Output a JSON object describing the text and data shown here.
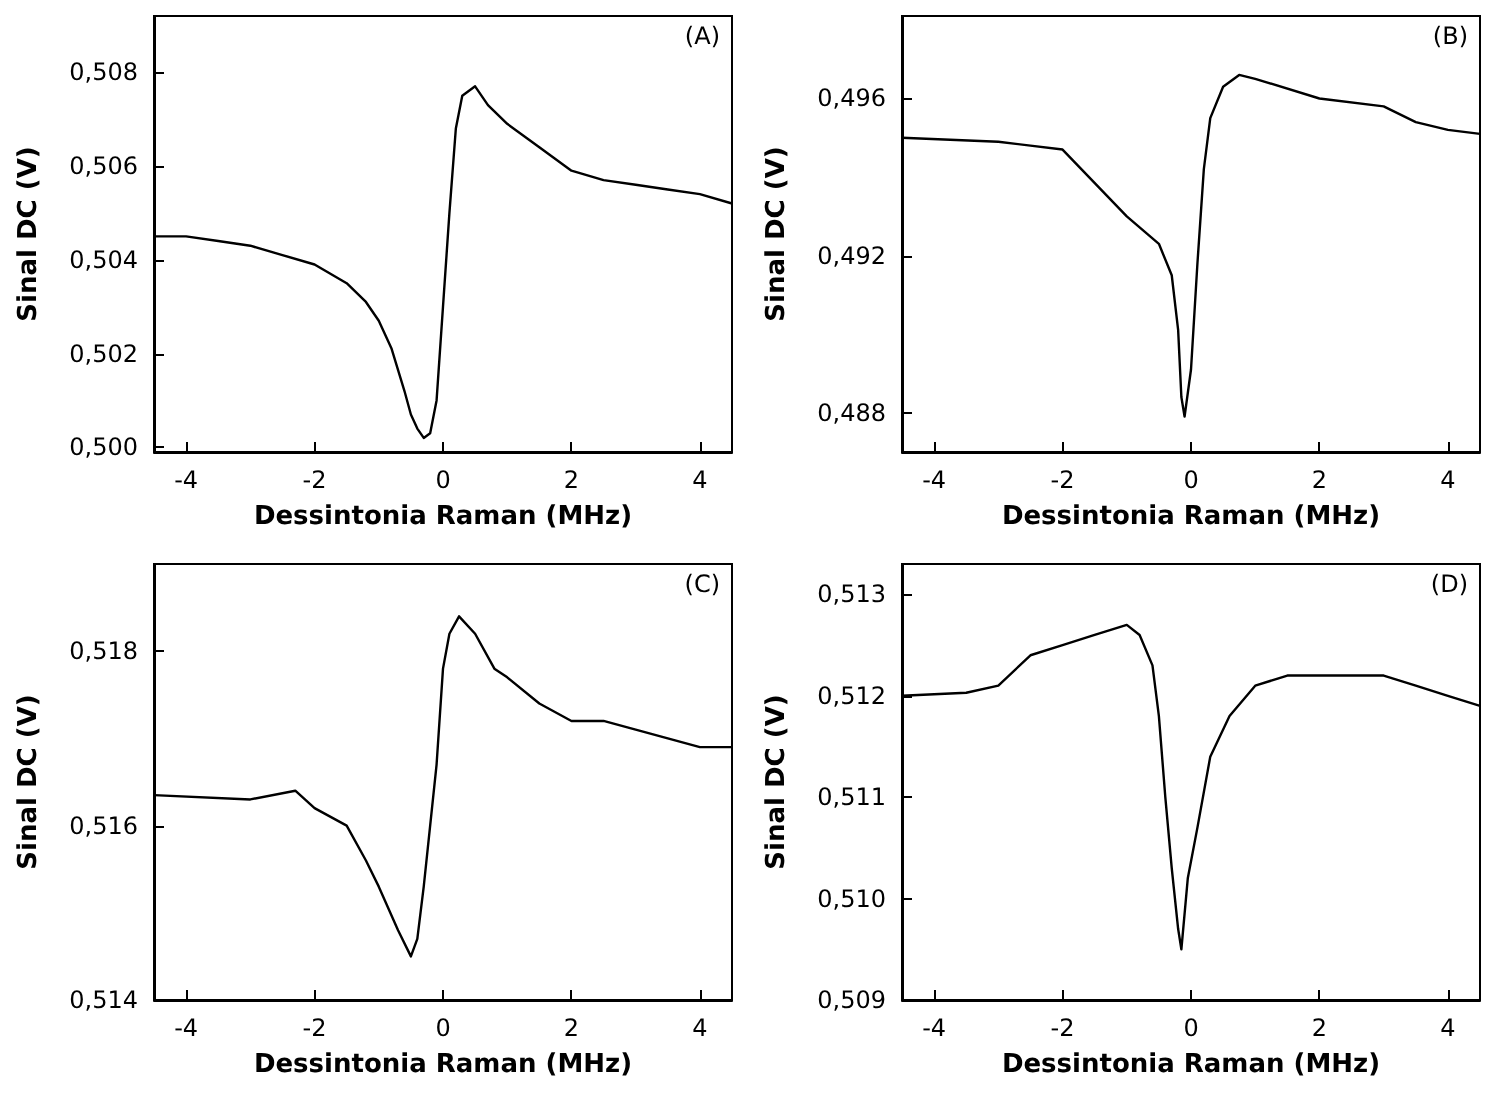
{
  "chart_data": [
    {
      "type": "line",
      "annotations": [
        "(A)"
      ],
      "xlabel": "Dessintonia Raman (MHz)",
      "ylabel": "Sinal DC (V)",
      "xlim": [
        -4.5,
        4.5
      ],
      "xticks": [
        -4,
        -2,
        0,
        2,
        4
      ],
      "ylim": [
        0.4999,
        0.5092
      ],
      "yticks": [
        {
          "value": 0.5,
          "label": "0,500"
        },
        {
          "value": 0.502,
          "label": "0,502"
        },
        {
          "value": 0.504,
          "label": "0,504"
        },
        {
          "value": 0.506,
          "label": "0,506"
        },
        {
          "value": 0.508,
          "label": "0,508"
        }
      ],
      "x": [
        -4.5,
        -4,
        -3.5,
        -3,
        -2.5,
        -2,
        -1.5,
        -1.2,
        -1,
        -0.8,
        -0.6,
        -0.5,
        -0.4,
        -0.3,
        -0.2,
        -0.1,
        0,
        0.1,
        0.2,
        0.3,
        0.5,
        0.7,
        1,
        1.5,
        2,
        2.5,
        3,
        3.5,
        4,
        4.5
      ],
      "series": [
        {
          "color": "#000000",
          "values": [
            0.5045,
            0.5045,
            0.5044,
            0.5043,
            0.5041,
            0.5039,
            0.5035,
            0.5031,
            0.5027,
            0.5021,
            0.5012,
            0.5007,
            0.5004,
            0.5002,
            0.5003,
            0.501,
            0.503,
            0.505,
            0.5068,
            0.5075,
            0.5077,
            0.5073,
            0.5069,
            0.5064,
            0.5059,
            0.5057,
            0.5056,
            0.5055,
            0.5054,
            0.5052
          ]
        }
      ]
    },
    {
      "type": "line",
      "annotations": [
        "(B)"
      ],
      "xlabel": "Dessintonia Raman (MHz)",
      "ylabel": "Sinal DC (V)",
      "xlim": [
        -4.5,
        4.5
      ],
      "xticks": [
        -4,
        -2,
        0,
        2,
        4
      ],
      "ylim": [
        0.487,
        0.4981
      ],
      "yticks": [
        {
          "value": 0.488,
          "label": "0,488"
        },
        {
          "value": 0.492,
          "label": "0,492"
        },
        {
          "value": 0.496,
          "label": "0,496"
        }
      ],
      "x": [
        -4.5,
        -3,
        -2.5,
        -2,
        -1,
        -0.5,
        -0.3,
        -0.2,
        -0.15,
        -0.1,
        0,
        0.1,
        0.2,
        0.3,
        0.5,
        0.75,
        1,
        2,
        3,
        3.5,
        4,
        4.5
      ],
      "series": [
        {
          "color": "#000000",
          "values": [
            0.495,
            0.4949,
            0.4948,
            0.4947,
            0.493,
            0.4923,
            0.4915,
            0.4901,
            0.4884,
            0.4879,
            0.4891,
            0.4918,
            0.4942,
            0.4955,
            0.4963,
            0.4966,
            0.4965,
            0.496,
            0.4958,
            0.4954,
            0.4952,
            0.4951
          ]
        }
      ]
    },
    {
      "type": "line",
      "annotations": [
        "(C)"
      ],
      "xlabel": "Dessintonia Raman (MHz)",
      "ylabel": "Sinal DC (V)",
      "xlim": [
        -4.5,
        4.5
      ],
      "xticks": [
        -4,
        -2,
        0,
        2,
        4
      ],
      "ylim": [
        0.514,
        0.519
      ],
      "yticks": [
        {
          "value": 0.514,
          "label": "0,514"
        },
        {
          "value": 0.516,
          "label": "0,516"
        },
        {
          "value": 0.518,
          "label": "0,518"
        }
      ],
      "x": [
        -4.5,
        -3,
        -2.3,
        -2,
        -1.5,
        -1.2,
        -1,
        -0.7,
        -0.5,
        -0.4,
        -0.3,
        -0.2,
        -0.1,
        0,
        0.1,
        0.25,
        0.5,
        0.8,
        1,
        1.5,
        2,
        2.5,
        3,
        3.5,
        4,
        4.5
      ],
      "series": [
        {
          "color": "#000000",
          "values": [
            0.51635,
            0.5163,
            0.5164,
            0.5162,
            0.516,
            0.5156,
            0.5153,
            0.5148,
            0.5145,
            0.5147,
            0.5153,
            0.516,
            0.5167,
            0.5178,
            0.5182,
            0.5184,
            0.5182,
            0.5178,
            0.5177,
            0.5174,
            0.5172,
            0.5172,
            0.5171,
            0.517,
            0.5169,
            0.5169
          ]
        }
      ]
    },
    {
      "type": "line",
      "annotations": [
        "(D)"
      ],
      "xlabel": "Dessintonia Raman (MHz)",
      "ylabel": "Sinal DC (V)",
      "xlim": [
        -4.5,
        4.5
      ],
      "xticks": [
        -4,
        -2,
        0,
        2,
        4
      ],
      "ylim": [
        0.509,
        0.5133
      ],
      "yticks": [
        {
          "value": 0.509,
          "label": "0,509"
        },
        {
          "value": 0.51,
          "label": "0,510"
        },
        {
          "value": 0.511,
          "label": "0,511"
        },
        {
          "value": 0.512,
          "label": "0,512"
        },
        {
          "value": 0.513,
          "label": "0,513"
        }
      ],
      "x": [
        -4.5,
        -3.5,
        -3,
        -2.5,
        -2,
        -1.5,
        -1,
        -0.8,
        -0.6,
        -0.5,
        -0.4,
        -0.3,
        -0.2,
        -0.15,
        -0.05,
        0.1,
        0.3,
        0.6,
        1,
        1.5,
        2,
        3,
        3.5,
        4,
        4.5
      ],
      "series": [
        {
          "color": "#000000",
          "values": [
            0.512,
            0.51203,
            0.5121,
            0.5124,
            0.5125,
            0.5126,
            0.5127,
            0.5126,
            0.5123,
            0.5118,
            0.511,
            0.5103,
            0.5097,
            0.5095,
            0.5102,
            0.5107,
            0.5114,
            0.5118,
            0.5121,
            0.5122,
            0.5122,
            0.5122,
            0.5121,
            0.512,
            0.5119
          ]
        }
      ]
    }
  ]
}
